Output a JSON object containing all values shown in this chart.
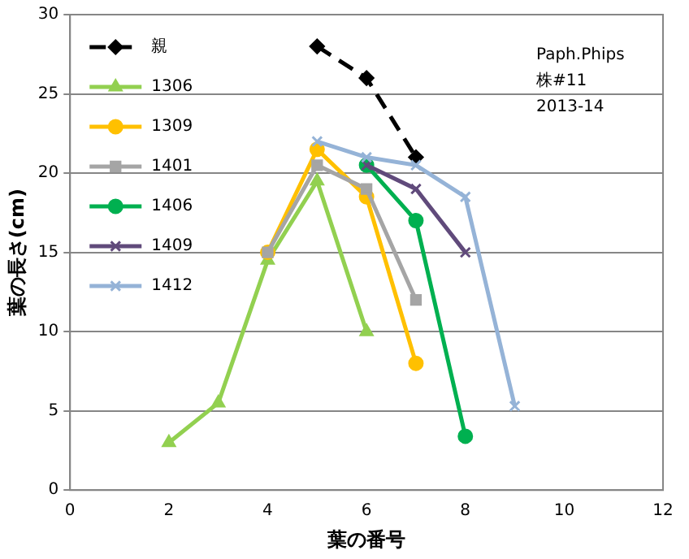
{
  "chart_data": {
    "type": "line",
    "xlabel": "葉の番号",
    "ylabel": "葉の長さ(cm)",
    "xlim": [
      0,
      12
    ],
    "xticks": [
      0,
      2,
      4,
      6,
      8,
      10,
      12
    ],
    "ylim": [
      0,
      30
    ],
    "yticks": [
      0,
      5,
      10,
      15,
      20,
      25,
      30
    ],
    "grid": "y",
    "legend": "top left",
    "annotations": [
      "Paph.Phips",
      "株#11",
      "2013-14"
    ],
    "series": [
      {
        "name": "親",
        "color": "#000000",
        "marker": "diamond",
        "line_style": "dashed",
        "x": [
          5,
          6,
          7
        ],
        "values": [
          28,
          26,
          21
        ]
      },
      {
        "name": "1306",
        "color": "#92d050",
        "marker": "triangle",
        "x": [
          2,
          3,
          4,
          5,
          6
        ],
        "values": [
          3,
          5.5,
          14.5,
          19.5,
          10
        ]
      },
      {
        "name": "1309",
        "color": "#ffc000",
        "marker": "circle",
        "x": [
          4,
          5,
          6,
          7
        ],
        "values": [
          15,
          21.5,
          18.5,
          8
        ]
      },
      {
        "name": "1401",
        "color": "#a5a5a5",
        "marker": "square",
        "x": [
          4,
          5,
          6,
          7
        ],
        "values": [
          15,
          20.5,
          19,
          12
        ]
      },
      {
        "name": "1406",
        "color": "#00b050",
        "marker": "circle",
        "x": [
          6,
          7,
          8
        ],
        "values": [
          20.5,
          17,
          3.4
        ]
      },
      {
        "name": "1409",
        "color": "#604a7b",
        "marker": "cross",
        "x": [
          6,
          7,
          8
        ],
        "values": [
          20.5,
          19,
          15
        ]
      },
      {
        "name": "1412",
        "color": "#95b3d7",
        "marker": "cross",
        "x": [
          5,
          6,
          7,
          8,
          9
        ],
        "values": [
          22,
          21,
          20.5,
          18.5,
          5.3
        ]
      }
    ]
  }
}
